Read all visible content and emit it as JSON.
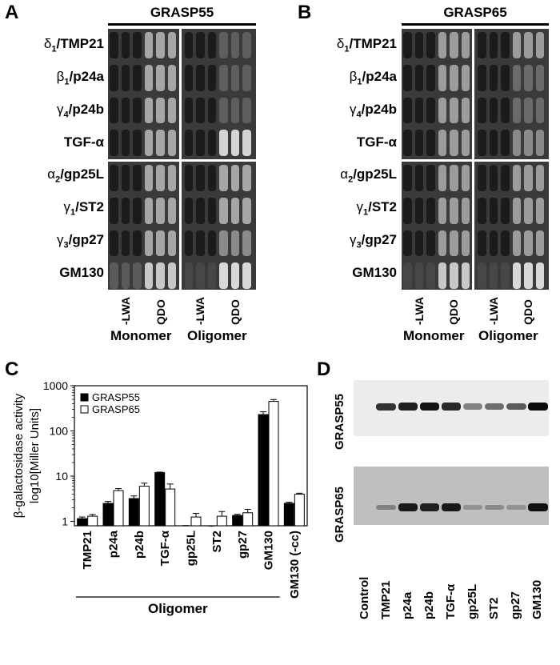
{
  "panels": {
    "A": {
      "letter": "A",
      "title": "GRASP55"
    },
    "B": {
      "letter": "B",
      "title": "GRASP65"
    },
    "C": {
      "letter": "C"
    },
    "D": {
      "letter": "D"
    }
  },
  "yeast_rows": [
    {
      "greek": "δ",
      "sub": "1",
      "name": "/TMP21"
    },
    {
      "greek": "β",
      "sub": "1",
      "name": "/p24a"
    },
    {
      "greek": "γ",
      "sub": "4",
      "name": "/p24b"
    },
    {
      "greek": "",
      "sub": "",
      "name": "TGF-α"
    },
    {
      "greek": "α",
      "sub": "2",
      "name": "/gp25L"
    },
    {
      "greek": "γ",
      "sub": "1",
      "name": "/ST2"
    },
    {
      "greek": "γ",
      "sub": "3",
      "name": "/gp27"
    },
    {
      "greek": "",
      "sub": "",
      "name": "GM130"
    }
  ],
  "yeast_columns": [
    "-LWA",
    "QDO",
    "-LWA",
    "QDO"
  ],
  "conditions": [
    "Monomer",
    "Oligomer"
  ],
  "colors": {
    "grid": "#3a3a3a",
    "dark_colony": "#1c1c1c",
    "light_colony": "#bdbdbd",
    "white_colony": "#e8e8e8"
  },
  "chart_data": {
    "type": "bar",
    "ylabel_line1": "β-galactosidase activity",
    "ylabel_line2": "log10[Miller Units]",
    "yscale": "log",
    "ylim": [
      0.8,
      1000
    ],
    "yticks": [
      "1",
      "10",
      "100",
      "1000"
    ],
    "categories": [
      "TMP21",
      "p24a",
      "p24b",
      "TGF-α",
      "gp25L",
      "ST2",
      "gp27",
      "GM130",
      "GM130 (-cc)"
    ],
    "group_label": "Oligomer",
    "series": [
      {
        "name": "GRASP55",
        "color": "#000000",
        "values": [
          1.15,
          2.5,
          3.2,
          12.0,
          0.78,
          0.76,
          1.35,
          230,
          2.5
        ],
        "errors": [
          0.1,
          0.25,
          0.45,
          0.3,
          0.03,
          0.03,
          0.08,
          35,
          0.15
        ]
      },
      {
        "name": "GRASP65",
        "color": "#ffffff",
        "values": [
          1.3,
          4.8,
          6.0,
          5.2,
          1.25,
          1.3,
          1.55,
          450,
          4.0
        ],
        "errors": [
          0.12,
          0.5,
          1.0,
          1.5,
          0.25,
          0.35,
          0.3,
          45,
          0.2
        ]
      }
    ]
  },
  "western": {
    "blot_labels": [
      "GRASP55",
      "GRASP65"
    ],
    "lanes": [
      "Control",
      "TMP21",
      "p24a",
      "p24b",
      "TGF-α",
      "gp25L",
      "ST2",
      "gp27",
      "GM130"
    ],
    "grasp55_intensity": [
      0.0,
      0.75,
      0.85,
      0.9,
      0.8,
      0.35,
      0.45,
      0.55,
      0.95
    ],
    "grasp65_intensity": [
      0.0,
      0.2,
      0.85,
      0.8,
      0.85,
      0.1,
      0.15,
      0.1,
      0.9
    ]
  }
}
